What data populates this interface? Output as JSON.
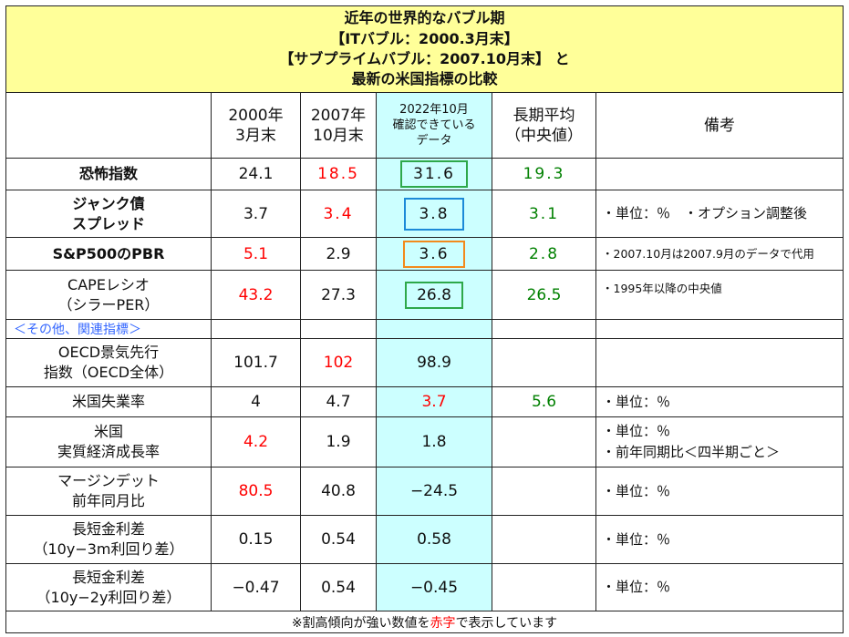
{
  "title": {
    "line1": "近年の世界的なバブル期",
    "line2": "【ITバブル：2000.3月末】",
    "line3": "【サブプライムバブル：2007.10月末】 と",
    "line4": "最新の米国指標の比較"
  },
  "headers": {
    "col1": [
      "2000年",
      "3月末"
    ],
    "col2": [
      "2007年",
      "10月末"
    ],
    "col3": [
      "2022年10月",
      "確認できている",
      "データ"
    ],
    "col4": [
      "長期平均",
      "（中央値）"
    ],
    "col5": "備考"
  },
  "rows": [
    {
      "label": [
        "恐怖指数"
      ],
      "v2000": "24.1",
      "v2007": "18.5",
      "v2022": "31.6",
      "avg": "19.3",
      "remark": []
    },
    {
      "label": [
        "ジャンク債",
        "スプレッド"
      ],
      "v2000": "3.7",
      "v2007": "3.4",
      "v2022": "3.8",
      "avg": "3.1",
      "remark": [
        "・単位：％　・オプション調整後"
      ]
    },
    {
      "label": [
        "S&P500のPBR"
      ],
      "v2000": "5.1",
      "v2007": "2.9",
      "v2022": "3.6",
      "avg": "2.8",
      "remark": [
        "・2007.10月は2007.9月のデータで代用"
      ]
    },
    {
      "label": [
        "CAPEレシオ",
        "（シラーPER）"
      ],
      "v2000": "43.2",
      "v2007": "27.3",
      "v2022": "26.8",
      "avg": "26.5",
      "remark": [
        "・1995年以降の中央値"
      ]
    },
    {
      "label": [
        "OECD景気先行",
        "指数（OECD全体）"
      ],
      "v2000": "101.7",
      "v2007": "102",
      "v2022": "98.9",
      "avg": "",
      "remark": []
    },
    {
      "label": [
        "米国失業率"
      ],
      "v2000": "4",
      "v2007": "4.7",
      "v2022": "3.7",
      "avg": "5.6",
      "remark": [
        "・単位：％"
      ]
    },
    {
      "label": [
        "米国",
        "実質経済成長率"
      ],
      "v2000": "4.2",
      "v2007": "1.9",
      "v2022": "1.8",
      "avg": "",
      "remark": [
        "・単位：％",
        "・前年同期比＜四半期ごと＞"
      ]
    },
    {
      "label": [
        "マージンデット",
        "前年同月比"
      ],
      "v2000": "80.5",
      "v2007": "40.8",
      "v2022": "−24.5",
      "avg": "",
      "remark": [
        "・単位：％"
      ]
    },
    {
      "label": [
        "長短金利差",
        "（10y−3m利回り差）"
      ],
      "v2000": "0.15",
      "v2007": "0.54",
      "v2022": "0.58",
      "avg": "",
      "remark": [
        "・単位：％"
      ]
    },
    {
      "label": [
        "長短金利差",
        "（10y−2y利回り差）"
      ],
      "v2000": "−0.47",
      "v2007": "0.54",
      "v2022": "−0.45",
      "avg": "",
      "remark": [
        "・単位：％"
      ]
    }
  ],
  "subheader": "＜その他、関連指標＞",
  "footnote": {
    "prefix": "※割高傾向が強い数値を",
    "red_word": "赤字",
    "suffix": "で表示しています"
  },
  "colors": {
    "title_bg": "#ffff99",
    "column_highlight": "#ccffff",
    "high_value": "#ff0000",
    "average_value": "#008000",
    "subheader_text": "#3366ff",
    "box_green": "#2ea84a",
    "box_blue": "#1c8ad8",
    "box_orange": "#f28a1d"
  }
}
